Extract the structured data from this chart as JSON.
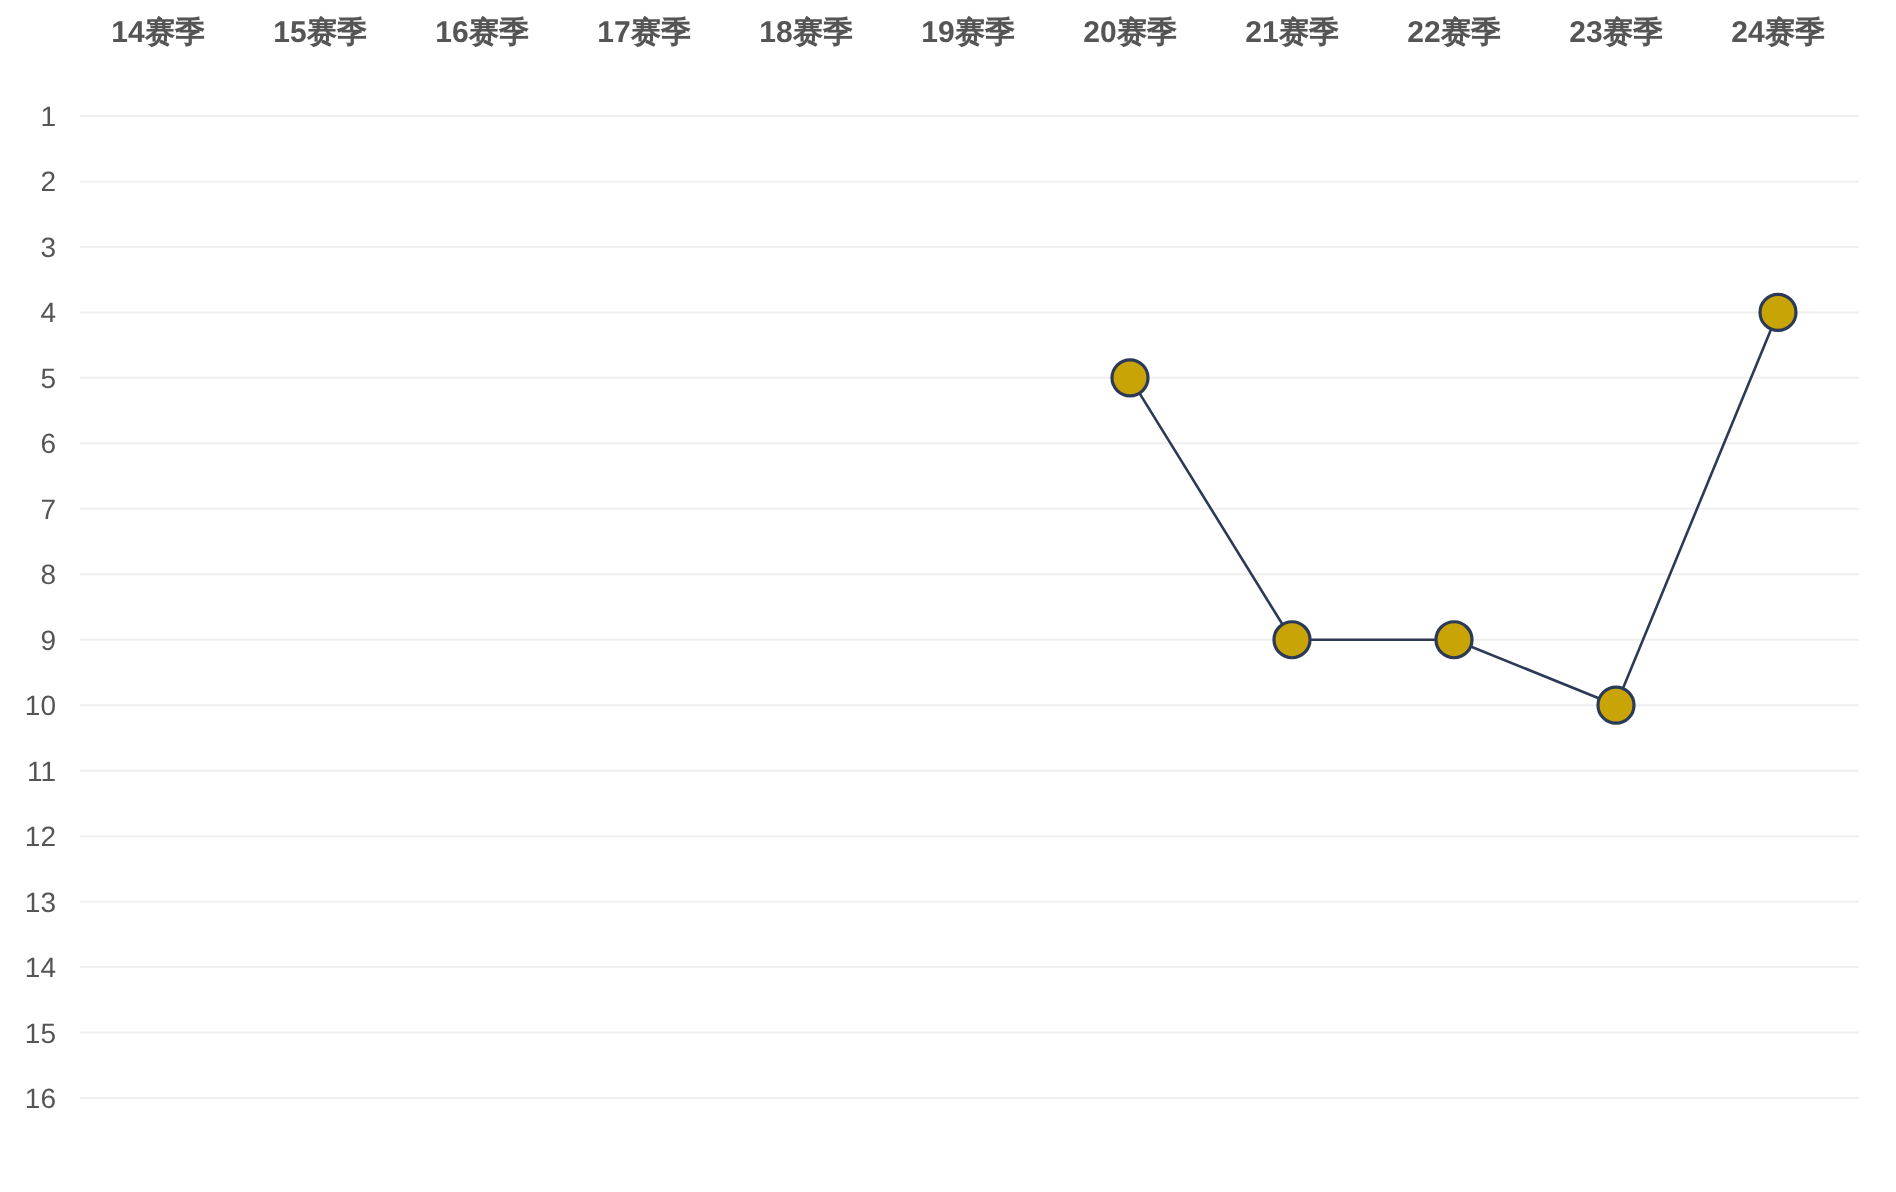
{
  "chart_data": {
    "type": "line",
    "categories": [
      "14赛季",
      "15赛季",
      "16赛季",
      "17赛季",
      "18赛季",
      "19赛季",
      "20赛季",
      "21赛季",
      "22赛季",
      "23赛季",
      "24赛季"
    ],
    "series": [
      {
        "color": "#2c3a57",
        "values": [
          null,
          null,
          null,
          null,
          null,
          null,
          5,
          9,
          9,
          10,
          4
        ]
      }
    ],
    "ylim": [
      16,
      1
    ],
    "yticks": [
      1,
      2,
      3,
      4,
      5,
      6,
      7,
      8,
      9,
      10,
      11,
      12,
      13,
      14,
      15,
      16
    ],
    "grid": "y",
    "marker": "circle",
    "line_style": "solid"
  }
}
